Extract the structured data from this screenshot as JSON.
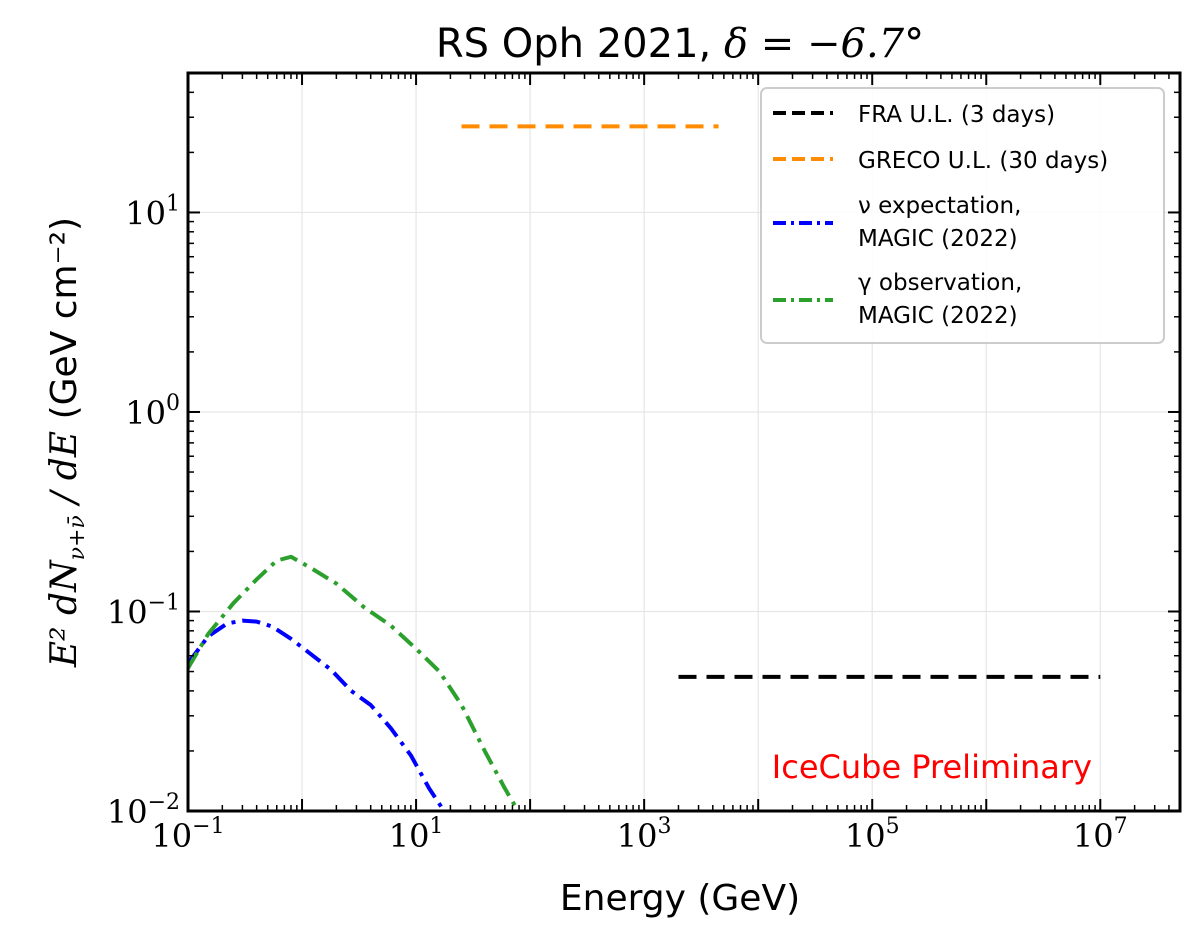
{
  "chart_data": {
    "type": "line",
    "title_prefix": "RS Oph 2021, ",
    "title_math": "δ = −6.7°",
    "xlabel": "Energy (GeV)",
    "ylabel_math_prefix": "E² dN",
    "ylabel_sub": "ν+ν̄",
    "ylabel_math_den": "dE",
    "ylabel_units": "(GeV cm⁻²)",
    "x_scale": "log",
    "y_scale": "log",
    "xlim": [
      0.1,
      50000000
    ],
    "ylim": [
      0.01,
      50
    ],
    "x_ticks": [
      {
        "value": 0.1,
        "base": "10",
        "exp": "−1"
      },
      {
        "value": 10,
        "base": "10",
        "exp": "1"
      },
      {
        "value": 1000,
        "base": "10",
        "exp": "3"
      },
      {
        "value": 100000,
        "base": "10",
        "exp": "5"
      },
      {
        "value": 10000000,
        "base": "10",
        "exp": "7"
      }
    ],
    "y_ticks": [
      {
        "value": 0.01,
        "base": "10",
        "exp": "−2"
      },
      {
        "value": 0.1,
        "base": "10",
        "exp": "−1"
      },
      {
        "value": 1,
        "base": "10",
        "exp": "0"
      },
      {
        "value": 10,
        "base": "10",
        "exp": "1"
      }
    ],
    "grid": true,
    "legend_position": "upper-right",
    "series": [
      {
        "name": "FRA U.L. (3 days)",
        "legend_lines": [
          "FRA U.L. (3 days)"
        ],
        "color": "#000000",
        "dash": "dashed",
        "x": [
          2000,
          10000000
        ],
        "y": [
          0.047,
          0.047
        ]
      },
      {
        "name": "GRECO U.L. (30 days)",
        "legend_lines": [
          "GRECO U.L. (30 days)"
        ],
        "color": "#ff8c00",
        "dash": "dashed",
        "x": [
          25,
          4500
        ],
        "y": [
          27,
          27
        ]
      },
      {
        "name": "ν expectation, MAGIC (2022)",
        "legend_lines": [
          "ν expectation,",
          "MAGIC (2022)"
        ],
        "legend_symbol": "ν",
        "color": "#0000ff",
        "dash": "dashdot",
        "x": [
          0.1,
          0.15,
          0.22,
          0.3,
          0.4,
          0.55,
          0.8,
          1.2,
          1.8,
          2.7,
          4,
          6,
          9,
          13,
          18
        ],
        "y": [
          0.055,
          0.075,
          0.087,
          0.09,
          0.089,
          0.084,
          0.073,
          0.061,
          0.051,
          0.04,
          0.034,
          0.026,
          0.019,
          0.013,
          0.0098
        ]
      },
      {
        "name": "γ observation, MAGIC (2022)",
        "legend_lines": [
          "γ observation,",
          "MAGIC (2022)"
        ],
        "legend_symbol": "γ",
        "color": "#2ca02c",
        "dash": "dashdot",
        "x": [
          0.1,
          0.15,
          0.25,
          0.4,
          0.6,
          0.8,
          1.2,
          2,
          3.5,
          6,
          10,
          16,
          25,
          40,
          60,
          80
        ],
        "y": [
          0.052,
          0.077,
          0.11,
          0.145,
          0.18,
          0.188,
          0.165,
          0.138,
          0.105,
          0.085,
          0.065,
          0.05,
          0.034,
          0.02,
          0.013,
          0.0098
        ]
      }
    ],
    "annotation": {
      "text": "IceCube Preliminary",
      "color": "#ff0000"
    }
  }
}
